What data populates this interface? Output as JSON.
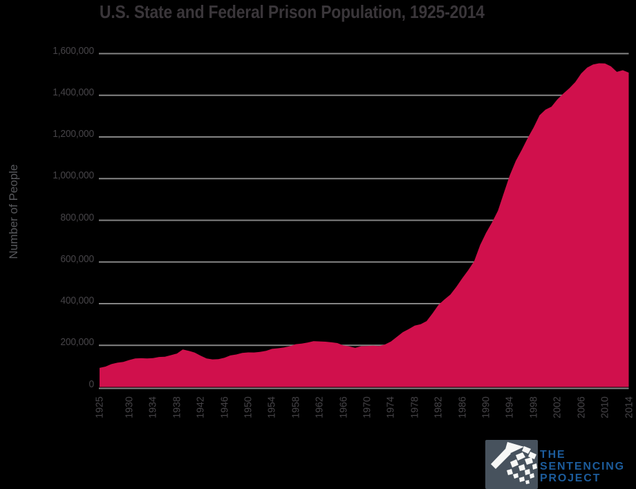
{
  "title": "U.S. State and Federal Prison Population, 1925-2014",
  "y_axis_title": "Number of People",
  "colors": {
    "background": "#000000",
    "area_fill": "#d0104c",
    "gridline": "#858585",
    "title_text": "#3a363a",
    "tick_text": "#454347",
    "axis_title_text": "#56575b",
    "logo_square": "#47525d",
    "logo_fan": "#f7f8f6",
    "logo_text": "#1c5c9c"
  },
  "y_ticks": [
    {
      "label": "0",
      "value": 0
    },
    {
      "label": "200,000",
      "value": 200000
    },
    {
      "label": "400,000",
      "value": 400000
    },
    {
      "label": "600,000",
      "value": 600000
    },
    {
      "label": "800,000",
      "value": 800000
    },
    {
      "label": "1,000,000",
      "value": 1000000
    },
    {
      "label": "1,200,000",
      "value": 1200000
    },
    {
      "label": "1,400,000",
      "value": 1400000
    },
    {
      "label": "1,600,000",
      "value": 1600000
    }
  ],
  "x_ticks": [
    "1925",
    "1930",
    "1934",
    "1938",
    "1942",
    "1946",
    "1950",
    "1954",
    "1958",
    "1962",
    "1966",
    "1970",
    "1974",
    "1978",
    "1982",
    "1986",
    "1990",
    "1994",
    "1998",
    "2002",
    "2006",
    "2010",
    "2014"
  ],
  "logo": {
    "mark_icon": "sunburst-fan-icon",
    "line1": "THE",
    "line2": "SENTENCING",
    "line3": "PROJECT"
  },
  "chart_data": {
    "type": "area",
    "title": "U.S. State and Federal Prison Population, 1925-2014",
    "xlabel": "",
    "ylabel": "Number of People",
    "xlim": [
      1925,
      2014
    ],
    "ylim": [
      0,
      1600000
    ],
    "grid": "horizontal",
    "legend": "none",
    "x_tick_labels": [
      "1925",
      "1930",
      "1934",
      "1938",
      "1942",
      "1946",
      "1950",
      "1954",
      "1958",
      "1962",
      "1966",
      "1970",
      "1974",
      "1978",
      "1982",
      "1986",
      "1990",
      "1994",
      "1998",
      "2002",
      "2006",
      "2010",
      "2014"
    ],
    "years": [
      1925,
      1926,
      1927,
      1928,
      1929,
      1930,
      1931,
      1932,
      1933,
      1934,
      1935,
      1936,
      1937,
      1938,
      1939,
      1940,
      1941,
      1942,
      1943,
      1944,
      1945,
      1946,
      1947,
      1948,
      1949,
      1950,
      1951,
      1952,
      1953,
      1954,
      1955,
      1956,
      1957,
      1958,
      1959,
      1960,
      1961,
      1962,
      1963,
      1964,
      1965,
      1966,
      1967,
      1968,
      1969,
      1970,
      1971,
      1972,
      1973,
      1974,
      1975,
      1976,
      1977,
      1978,
      1979,
      1980,
      1981,
      1982,
      1983,
      1984,
      1985,
      1986,
      1987,
      1988,
      1989,
      1990,
      1991,
      1992,
      1993,
      1994,
      1995,
      1996,
      1997,
      1998,
      1999,
      2000,
      2001,
      2002,
      2003,
      2004,
      2005,
      2006,
      2007,
      2008,
      2009,
      2010,
      2011,
      2012,
      2013,
      2014
    ],
    "values": [
      91669,
      97991,
      109983,
      116390,
      120496,
      129453,
      137082,
      137997,
      136810,
      138316,
      144180,
      145038,
      152741,
      160285,
      179818,
      173706,
      165439,
      150384,
      137220,
      132456,
      133649,
      140079,
      151304,
      155977,
      163749,
      166123,
      165680,
      168233,
      173579,
      182901,
      185780,
      189565,
      195414,
      205643,
      208105,
      212953,
      220149,
      218830,
      217283,
      214336,
      210895,
      199654,
      194896,
      187914,
      196007,
      196429,
      198061,
      196092,
      204211,
      218466,
      240593,
      262833,
      278141,
      294396,
      301470,
      315974,
      353673,
      394374,
      419820,
      443398,
      480568,
      522084,
      560812,
      603732,
      680907,
      739980,
      789610,
      846277,
      932074,
      1016691,
      1085022,
      1137722,
      1194581,
      1245402,
      1304074,
      1331278,
      1345217,
      1380516,
      1408361,
      1433728,
      1462866,
      1504660,
      1532851,
      1547742,
      1553574,
      1552669,
      1538847,
      1512430,
      1520403,
      1508636
    ]
  }
}
